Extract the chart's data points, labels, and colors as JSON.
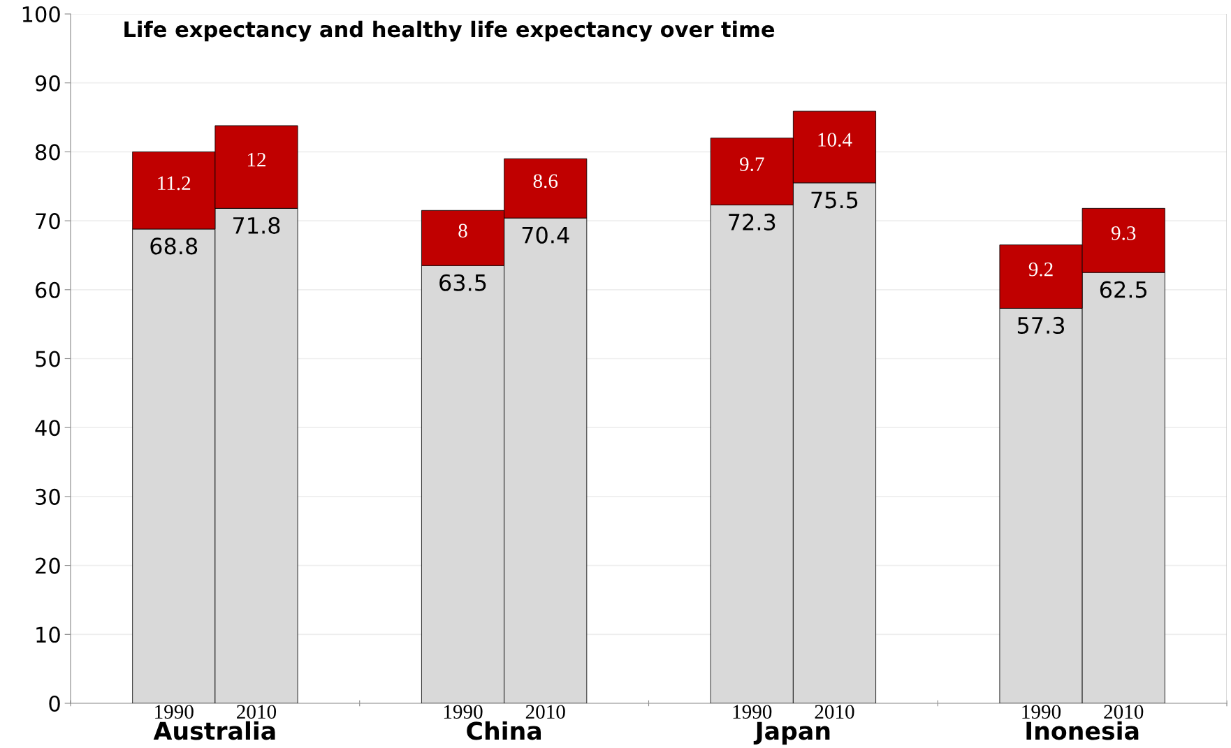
{
  "chart_data": {
    "type": "bar",
    "subtitle": "Life expectancy and healthy life expectancy over time",
    "categories": [
      "1990",
      "2010",
      "1990",
      "2010",
      "1990",
      "2010",
      "1990",
      "2010"
    ],
    "annotations": [
      "Australia",
      "China",
      "Japan",
      "Inonesia"
    ],
    "stacked": true,
    "series": [
      {
        "color": "#d9d9d9",
        "values": [
          68.8,
          71.8,
          63.5,
          70.4,
          72.3,
          75.5,
          57.3,
          62.5
        ]
      },
      {
        "color": "#c00000",
        "values": [
          11.2,
          12,
          8,
          8.6,
          9.7,
          10.4,
          9.2,
          9.3
        ]
      }
    ],
    "data_labels": true,
    "ylim": [
      0,
      100
    ],
    "yticks": [
      0,
      10,
      20,
      30,
      40,
      50,
      60,
      70,
      80,
      90,
      100
    ],
    "grid": "y",
    "legend": false
  }
}
